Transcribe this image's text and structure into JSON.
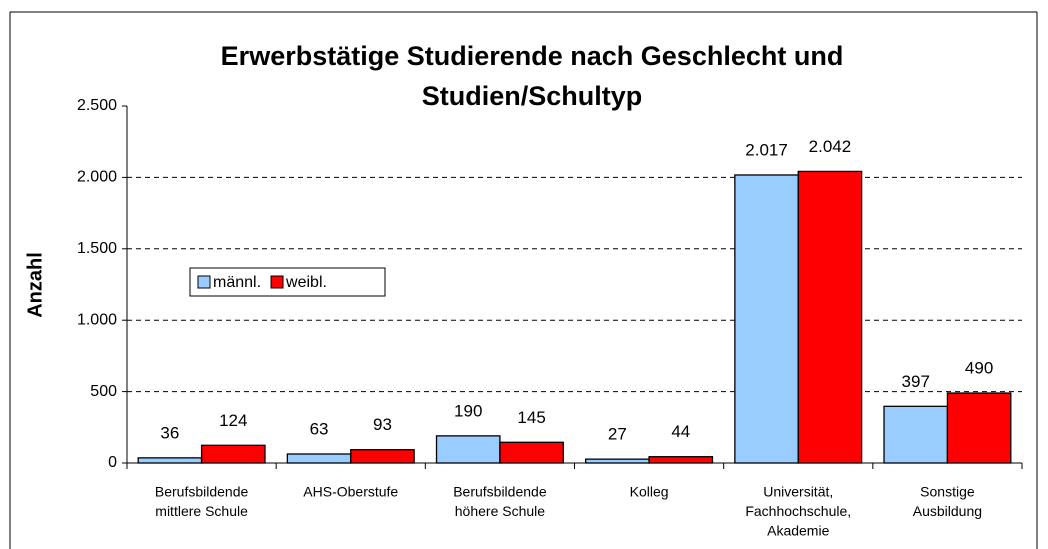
{
  "chart_data": {
    "type": "bar",
    "title": [
      "Erwerbstätige Studierende nach Geschlecht und",
      "Studien/Schultyp"
    ],
    "y_label": "Anzahl",
    "categories": [
      [
        "Berufsbildende",
        "mittlere Schule"
      ],
      [
        "AHS-Oberstufe"
      ],
      [
        "Berufsbildende",
        "höhere Schule"
      ],
      [
        "Kolleg"
      ],
      [
        "Universität,",
        "Fachhochschule,",
        "Akademie"
      ],
      [
        "Sonstige",
        "Ausbildung"
      ]
    ],
    "series": [
      {
        "name": "männl.",
        "color": "#99ccff",
        "values": [
          36,
          63,
          190,
          27,
          2017,
          397
        ],
        "value_labels": [
          "36",
          "63",
          "190",
          "27",
          "2.017",
          "397"
        ]
      },
      {
        "name": "weibl.",
        "color": "#ff0000",
        "values": [
          124,
          93,
          145,
          44,
          2042,
          490
        ],
        "value_labels": [
          "124",
          "93",
          "145",
          "44",
          "2.042",
          "490"
        ]
      }
    ],
    "ylim": [
      0,
      2500
    ],
    "yticks": [
      0,
      {
        "value": 500,
        "label": "500"
      },
      {
        "value": 1000,
        "label": "1.000"
      },
      {
        "value": 1500,
        "label": "1.500"
      },
      {
        "value": 2000,
        "label": "2.000"
      },
      {
        "value": 2500,
        "label": "2.500"
      }
    ],
    "grid": true,
    "legend": "left"
  }
}
